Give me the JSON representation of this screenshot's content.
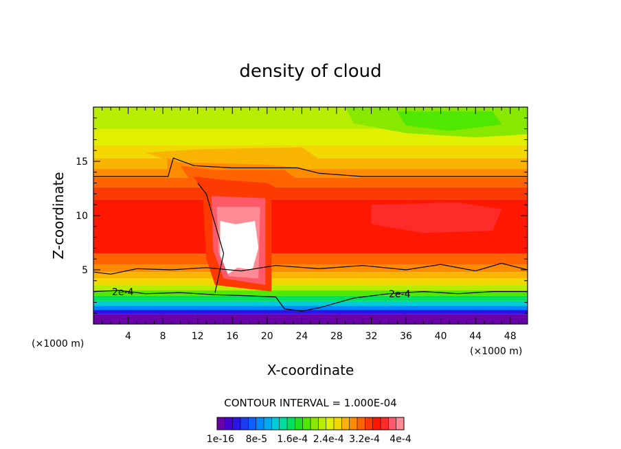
{
  "chart_data": {
    "type": "heatmap",
    "title": "density of cloud",
    "xlabel": "X-coordinate",
    "ylabel": "Z-coordinate",
    "x_unit": "(×1000 m)",
    "y_unit": "(×1000 m)",
    "xlim": [
      0,
      50
    ],
    "ylim": [
      0,
      20
    ],
    "x_ticks": [
      4,
      8,
      12,
      16,
      20,
      24,
      28,
      32,
      36,
      40,
      44,
      48
    ],
    "y_ticks": [
      5,
      10,
      15
    ],
    "contour_interval_text": "CONTOUR INTERVAL = 1.000E-04",
    "contour_line_label": "2e-4",
    "colorbar_labels": [
      "1e-16",
      "8e-5",
      "1.6e-4",
      "2.4e-4",
      "3.2e-4",
      "4e-4"
    ],
    "colorbar_colors": [
      "#6a00a8",
      "#4400d0",
      "#2a14e6",
      "#1f3cf5",
      "#1060ff",
      "#0088ff",
      "#00aaf0",
      "#00ccd8",
      "#00dca0",
      "#00e060",
      "#20e020",
      "#50e800",
      "#88e800",
      "#b8ec00",
      "#e0f000",
      "#f0d800",
      "#f8b400",
      "#ff8c00",
      "#ff6400",
      "#ff3a00",
      "#ff1800",
      "#ff2a2a",
      "#ff5a6a",
      "#ff8c94"
    ],
    "grid": false,
    "legend": "colorbar-bottom",
    "field": {
      "background_bands": [
        {
          "z0": 0.0,
          "z1": 0.9,
          "color": "#6a00a8"
        },
        {
          "z0": 0.9,
          "z1": 1.3,
          "color": "#2a14e6"
        },
        {
          "z0": 1.3,
          "z1": 1.7,
          "color": "#0088ff"
        },
        {
          "z0": 1.7,
          "z1": 2.1,
          "color": "#00ccd8"
        },
        {
          "z0": 2.1,
          "z1": 2.6,
          "color": "#00e060"
        },
        {
          "z0": 2.6,
          "z1": 3.1,
          "color": "#50e800"
        },
        {
          "z0": 3.1,
          "z1": 3.6,
          "color": "#b8ec00"
        },
        {
          "z0": 3.6,
          "z1": 4.2,
          "color": "#f0d800"
        },
        {
          "z0": 4.2,
          "z1": 4.8,
          "color": "#f8b400"
        },
        {
          "z0": 4.8,
          "z1": 5.5,
          "color": "#ff8c00"
        },
        {
          "z0": 5.5,
          "z1": 6.5,
          "color": "#ff6400"
        },
        {
          "z0": 6.5,
          "z1": 11.5,
          "color": "#ff1800"
        },
        {
          "z0": 11.5,
          "z1": 12.6,
          "color": "#ff3a00"
        },
        {
          "z0": 12.6,
          "z1": 13.5,
          "color": "#ff6400"
        },
        {
          "z0": 13.5,
          "z1": 14.3,
          "color": "#ff8c00"
        },
        {
          "z0": 14.3,
          "z1": 15.3,
          "color": "#f8b400"
        },
        {
          "z0": 15.3,
          "z1": 16.5,
          "color": "#f0d800"
        },
        {
          "z0": 16.5,
          "z1": 18.0,
          "color": "#e0f000"
        },
        {
          "z0": 18.0,
          "z1": 20.0,
          "color": "#b8ec00"
        }
      ],
      "patches": [
        {
          "color": "#88e800",
          "points": [
            [
              29,
              20
            ],
            [
              50,
              20
            ],
            [
              50,
              17.5
            ],
            [
              44,
              17.2
            ],
            [
              36,
              17.6
            ],
            [
              30,
              18.5
            ]
          ]
        },
        {
          "color": "#50e800",
          "points": [
            [
              35,
              19.6
            ],
            [
              46,
              19.6
            ],
            [
              47,
              18.4
            ],
            [
              41,
              17.8
            ],
            [
              36,
              18.3
            ]
          ]
        },
        {
          "color": "#f8b400",
          "points": [
            [
              6,
              15.8
            ],
            [
              9,
              15.0
            ],
            [
              14,
              14.5
            ],
            [
              24,
              14.5
            ],
            [
              26,
              15.2
            ],
            [
              24,
              16.3
            ],
            [
              12,
              16.1
            ]
          ]
        },
        {
          "color": "#ff8c00",
          "points": [
            [
              8.5,
              15.3
            ],
            [
              10,
              14.9
            ],
            [
              20,
              14.7
            ],
            [
              24,
              14.4
            ],
            [
              25,
              13.8
            ],
            [
              10,
              13.7
            ],
            [
              8.5,
              14.3
            ]
          ]
        },
        {
          "color": "#ff6400",
          "points": [
            [
              10,
              14.6
            ],
            [
              14,
              14.2
            ],
            [
              22,
              14.2
            ],
            [
              24,
              13.0
            ],
            [
              16,
              12.9
            ],
            [
              11,
              13.4
            ]
          ]
        },
        {
          "color": "#ff3a00",
          "points": [
            [
              11.5,
              13.6
            ],
            [
              15,
              13.3
            ],
            [
              20,
              13.0
            ],
            [
              22,
              12.2
            ],
            [
              17,
              11.6
            ],
            [
              13,
              12.0
            ]
          ]
        },
        {
          "color": "#ff2a2a",
          "points": [
            [
              32,
              11.0
            ],
            [
              42,
              11.2
            ],
            [
              47,
              10.6
            ],
            [
              46,
              8.6
            ],
            [
              38,
              8.4
            ],
            [
              32,
              9.2
            ]
          ]
        },
        {
          "color": "#ff3a00",
          "points": [
            [
              12.5,
              13.0
            ],
            [
              20.5,
              12.8
            ],
            [
              20.5,
              3.0
            ],
            [
              14,
              3.6
            ],
            [
              13,
              6.0
            ]
          ]
        },
        {
          "color": "#ff5a6a",
          "points": [
            [
              13.6,
              11.8
            ],
            [
              19.8,
              11.6
            ],
            [
              19.8,
              3.6
            ],
            [
              15.0,
              4.2
            ],
            [
              13.8,
              6.8
            ]
          ]
        },
        {
          "color": "#ff8c94",
          "points": [
            [
              14.2,
              10.8
            ],
            [
              19.2,
              10.8
            ],
            [
              19.0,
              4.2
            ],
            [
              15.6,
              4.4
            ],
            [
              14.4,
              6.6
            ]
          ]
        },
        {
          "color": "#ffffff",
          "points": [
            [
              14.6,
              9.5
            ],
            [
              16.4,
              9.2
            ],
            [
              18.6,
              9.5
            ],
            [
              19.0,
              7.0
            ],
            [
              18.3,
              5.0
            ],
            [
              16.6,
              5.2
            ],
            [
              15.5,
              4.6
            ],
            [
              14.6,
              6.3
            ]
          ]
        }
      ],
      "contours": [
        {
          "points": [
            [
              0,
              13.6
            ],
            [
              8.6,
              13.6
            ],
            [
              9.2,
              15.3
            ],
            [
              11.6,
              14.6
            ],
            [
              16,
              14.4
            ],
            [
              23.5,
              14.4
            ],
            [
              26,
              13.9
            ],
            [
              31,
              13.6
            ],
            [
              50,
              13.6
            ]
          ]
        },
        {
          "points": [
            [
              0,
              4.8
            ],
            [
              2,
              4.6
            ],
            [
              5,
              5.1
            ],
            [
              9,
              5.0
            ],
            [
              13,
              5.2
            ],
            [
              17,
              4.9
            ],
            [
              21,
              5.4
            ],
            [
              26,
              5.1
            ],
            [
              31,
              5.4
            ],
            [
              36,
              5.0
            ],
            [
              40,
              5.5
            ],
            [
              44,
              4.9
            ],
            [
              47,
              5.6
            ],
            [
              50,
              5.0
            ]
          ]
        },
        {
          "points": [
            [
              0,
              3.0
            ],
            [
              3,
              3.1
            ],
            [
              6,
              2.8
            ],
            [
              10,
              2.9
            ],
            [
              14,
              2.7
            ],
            [
              18,
              2.6
            ],
            [
              21,
              2.5
            ],
            [
              22,
              1.4
            ],
            [
              24,
              1.2
            ],
            [
              26,
              1.5
            ],
            [
              30,
              2.4
            ],
            [
              34,
              2.8
            ],
            [
              38,
              3.0
            ],
            [
              42,
              2.8
            ],
            [
              46,
              3.0
            ],
            [
              50,
              3.0
            ]
          ]
        },
        {
          "points": [
            [
              14,
              2.9
            ],
            [
              15,
              6.5
            ],
            [
              13,
              12.0
            ],
            [
              12,
              13.0
            ]
          ]
        }
      ]
    }
  }
}
